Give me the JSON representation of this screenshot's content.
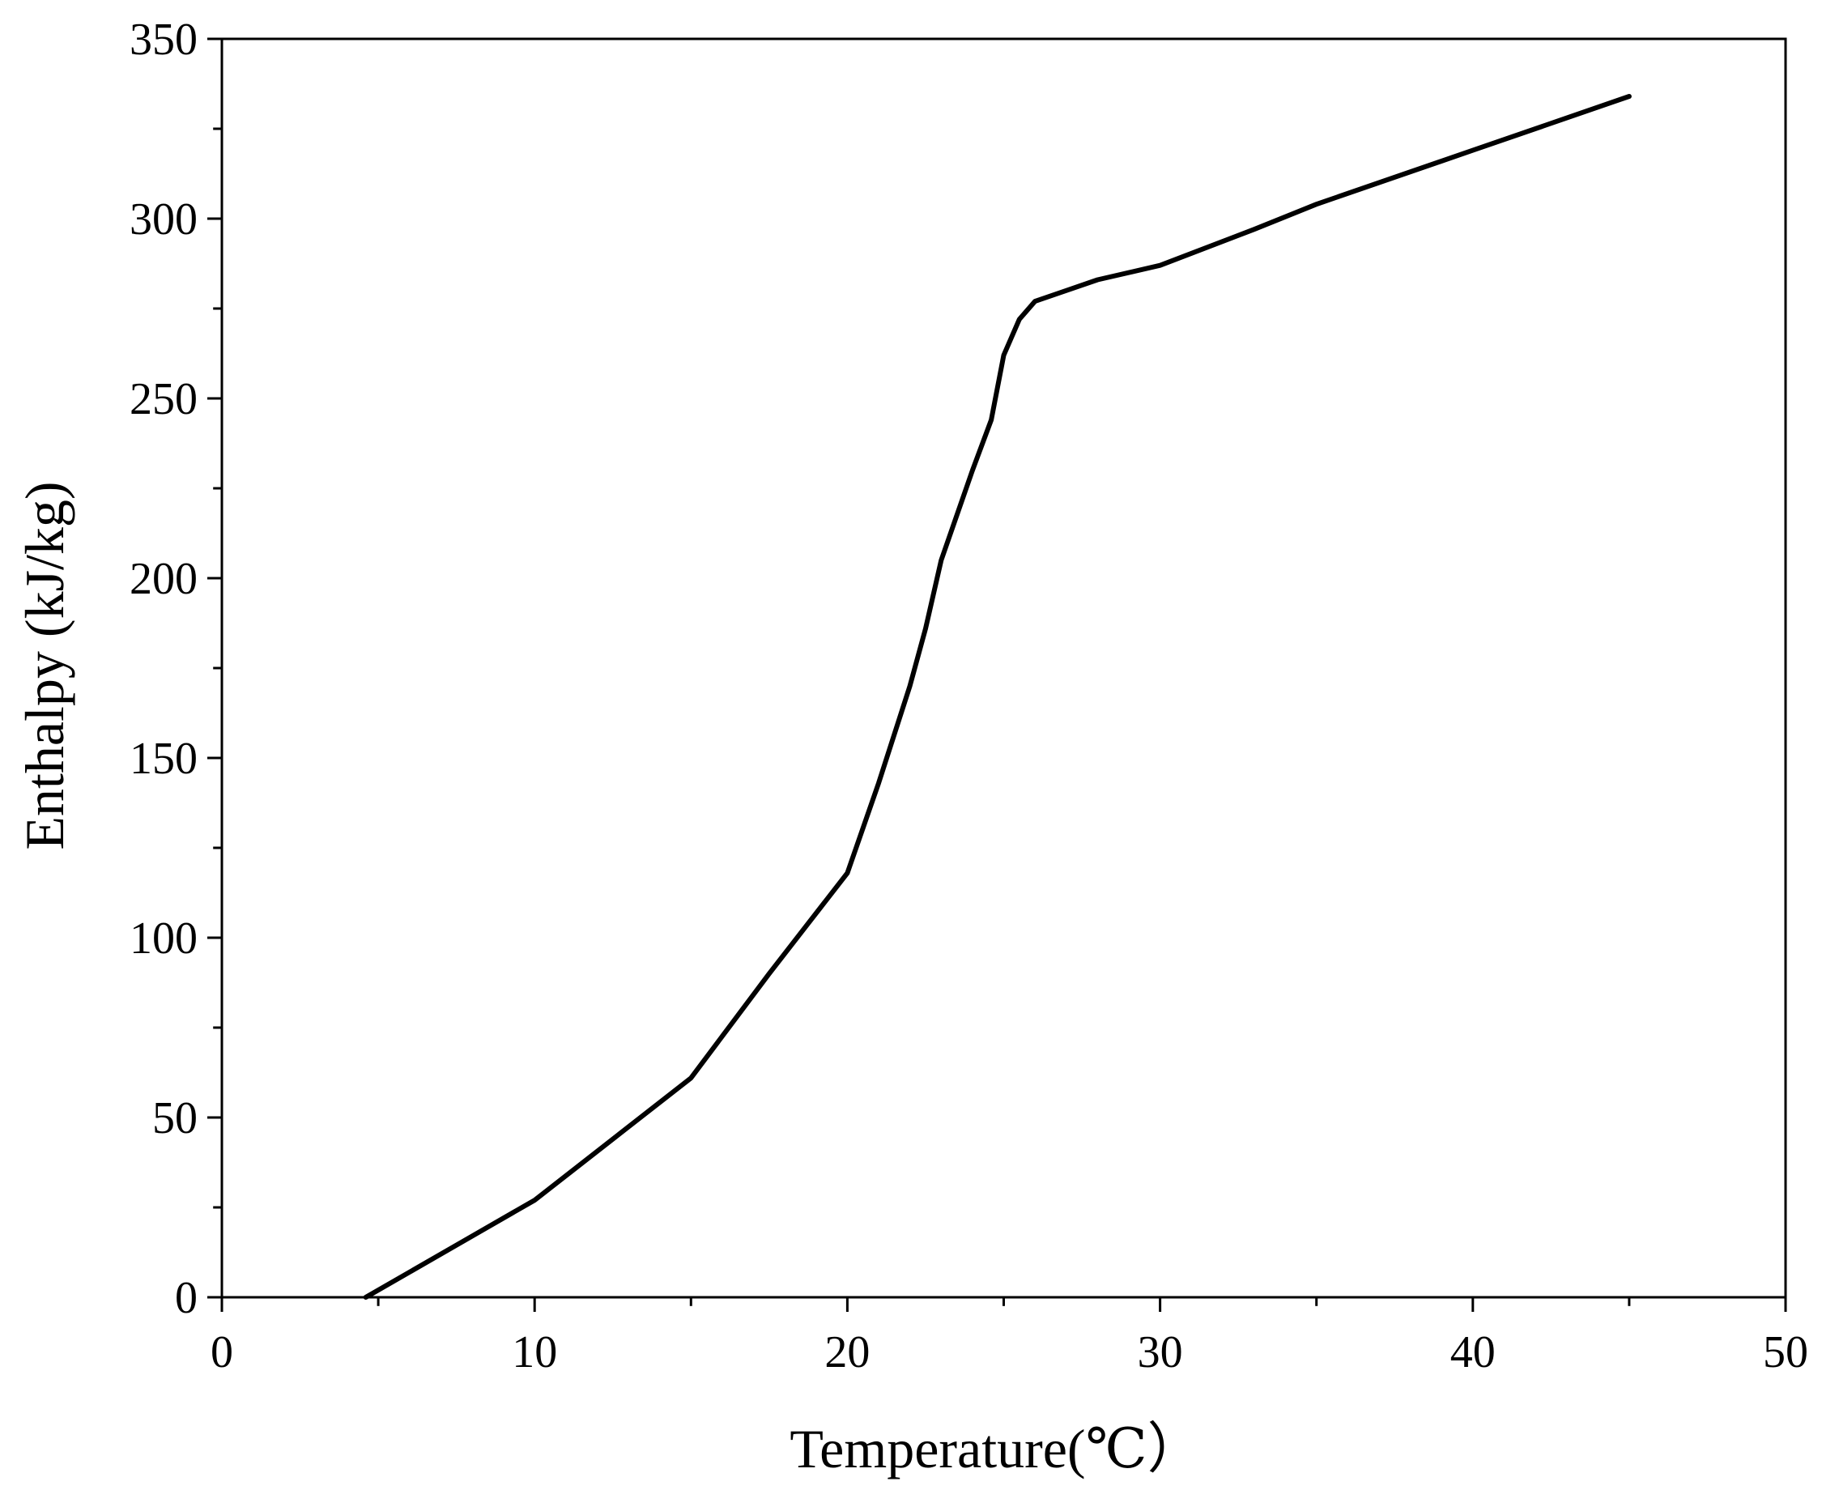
{
  "chart_data": {
    "type": "line",
    "title": "",
    "xlabel": "Temperature(℃）",
    "ylabel": "Enthalpy (kJ/kg)",
    "xlim": [
      0,
      50
    ],
    "ylim": [
      0,
      350
    ],
    "xticks": [
      0,
      10,
      20,
      30,
      40,
      50
    ],
    "yticks": [
      0,
      50,
      100,
      150,
      200,
      250,
      300,
      350
    ],
    "grid": false,
    "legend": "none",
    "colors": {
      "line": "#000000",
      "ylabel": "#5a1a10",
      "axis": "#000000"
    },
    "series": [
      {
        "x": [
          4.6,
          10,
          15,
          17.5,
          20,
          21,
          22,
          22.5,
          23,
          24,
          24.6,
          25,
          25.5,
          26,
          27,
          28,
          30,
          33,
          35,
          40,
          45
        ],
        "y": [
          0,
          27,
          61,
          90,
          118,
          143,
          170,
          186,
          205,
          230,
          244,
          262,
          272,
          277,
          280,
          283,
          287,
          297,
          304,
          319,
          334
        ]
      }
    ]
  }
}
